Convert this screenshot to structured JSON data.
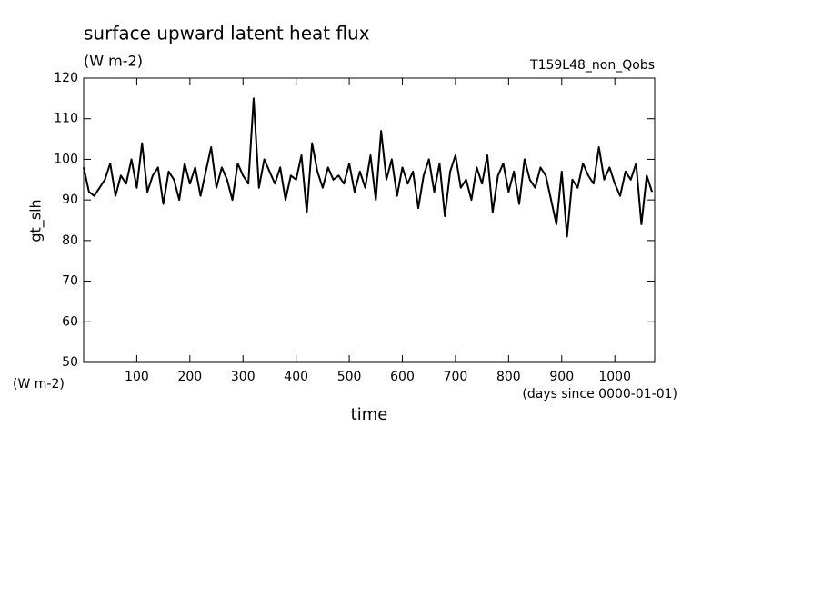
{
  "chart_data": {
    "type": "line",
    "title": "surface upward latent heat flux",
    "subtitle": "(W m-2)",
    "annotation": "T159L48_non_Qobs",
    "ylabel": "gt_slh",
    "y_unit_label": "(W m-2)",
    "xlabel": "time",
    "x_unit_label": "(days since 0000-01-01)",
    "color": "#000000",
    "x": [
      0,
      10,
      20,
      30,
      40,
      50,
      60,
      70,
      80,
      90,
      100,
      110,
      120,
      130,
      140,
      150,
      160,
      170,
      180,
      190,
      200,
      210,
      220,
      230,
      240,
      250,
      260,
      270,
      280,
      290,
      300,
      310,
      320,
      330,
      340,
      350,
      360,
      370,
      380,
      390,
      400,
      410,
      420,
      430,
      440,
      450,
      460,
      470,
      480,
      490,
      500,
      510,
      520,
      530,
      540,
      550,
      560,
      570,
      580,
      590,
      600,
      610,
      620,
      630,
      640,
      650,
      660,
      670,
      680,
      690,
      700,
      710,
      720,
      730,
      740,
      750,
      760,
      770,
      780,
      790,
      800,
      810,
      820,
      830,
      840,
      850,
      860,
      870,
      880,
      890,
      900,
      910,
      920,
      930,
      940,
      950,
      960,
      970,
      980,
      990,
      1000,
      1010,
      1020,
      1030,
      1040,
      1050,
      1060,
      1070
    ],
    "values": [
      98,
      92,
      91,
      93,
      95,
      99,
      91,
      96,
      94,
      100,
      93,
      104,
      92,
      96,
      98,
      89,
      97,
      95,
      90,
      99,
      94,
      98,
      91,
      97,
      103,
      93,
      98,
      95,
      90,
      99,
      96,
      94,
      115,
      93,
      100,
      97,
      94,
      98,
      90,
      96,
      95,
      101,
      87,
      104,
      97,
      93,
      98,
      95,
      96,
      94,
      99,
      92,
      97,
      93,
      101,
      90,
      107,
      95,
      100,
      91,
      98,
      94,
      97,
      88,
      96,
      100,
      92,
      99,
      86,
      97,
      101,
      93,
      95,
      90,
      98,
      94,
      101,
      87,
      96,
      99,
      92,
      97,
      89,
      100,
      95,
      93,
      98,
      96,
      90,
      84,
      97,
      81,
      95,
      93,
      99,
      96,
      94,
      103,
      95,
      98,
      94,
      91,
      97,
      95,
      99,
      84,
      96,
      92
    ],
    "xlim": [
      0,
      1075
    ],
    "ylim": [
      50,
      120
    ],
    "xticks": [
      100,
      200,
      300,
      400,
      500,
      600,
      700,
      800,
      900,
      1000
    ],
    "yticks": [
      50,
      60,
      70,
      80,
      90,
      100,
      110,
      120
    ],
    "grid": false
  }
}
